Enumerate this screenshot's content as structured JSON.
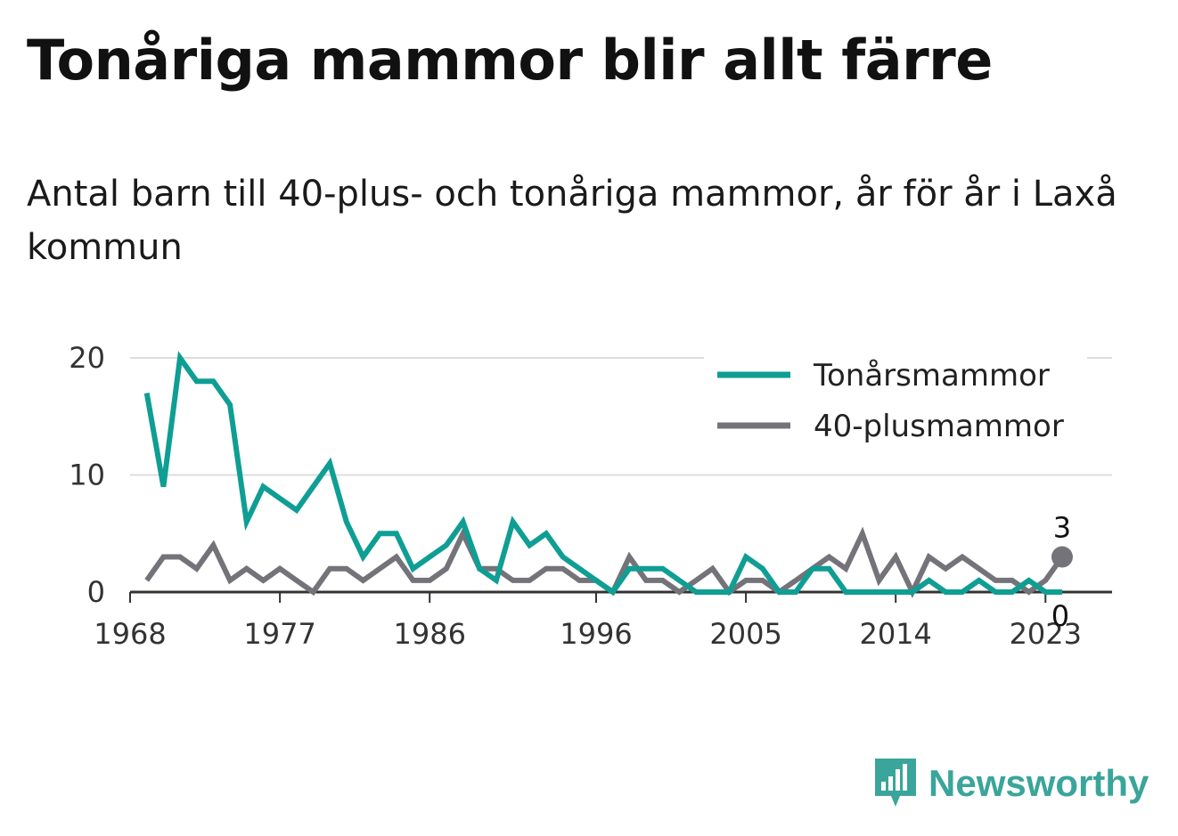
{
  "title": "Tonåriga mammor blir allt färre",
  "subtitle": "Antal barn till 40-plus- och tonåriga mammor, år för år i Laxå kommun",
  "brand": {
    "name": "Newsworthy",
    "icon": "newsworthy-logo-icon",
    "color": "#3aa59a"
  },
  "chart_data": {
    "type": "line",
    "x": [
      1969,
      1970,
      1971,
      1972,
      1973,
      1974,
      1975,
      1976,
      1977,
      1978,
      1979,
      1980,
      1981,
      1982,
      1983,
      1984,
      1985,
      1986,
      1987,
      1988,
      1989,
      1990,
      1991,
      1992,
      1993,
      1994,
      1995,
      1996,
      1997,
      1998,
      1999,
      2000,
      2001,
      2002,
      2003,
      2004,
      2005,
      2006,
      2007,
      2008,
      2009,
      2010,
      2011,
      2012,
      2013,
      2014,
      2015,
      2016,
      2017,
      2018,
      2019,
      2020,
      2021,
      2022,
      2023,
      2024
    ],
    "series": [
      {
        "name": "Tonårsmammor",
        "color": "#0f9e94",
        "values": [
          17,
          9,
          20,
          18,
          18,
          16,
          6,
          9,
          8,
          7,
          9,
          11,
          6,
          3,
          5,
          5,
          2,
          3,
          4,
          6,
          2,
          1,
          6,
          4,
          5,
          3,
          2,
          1,
          0,
          2,
          2,
          2,
          1,
          0,
          0,
          0,
          3,
          2,
          0,
          0,
          2,
          2,
          0,
          0,
          0,
          0,
          0,
          1,
          0,
          0,
          1,
          0,
          0,
          1,
          0,
          0
        ]
      },
      {
        "name": "40-plusmammor",
        "color": "#74737a",
        "values": [
          1,
          3,
          3,
          2,
          4,
          1,
          2,
          1,
          2,
          1,
          0,
          2,
          2,
          1,
          2,
          3,
          1,
          1,
          2,
          5,
          2,
          2,
          1,
          1,
          2,
          2,
          1,
          1,
          0,
          3,
          1,
          1,
          0,
          1,
          2,
          0,
          1,
          1,
          0,
          1,
          2,
          3,
          2,
          5,
          1,
          3,
          0,
          3,
          2,
          3,
          2,
          1,
          1,
          0,
          1,
          3
        ]
      }
    ],
    "end_labels": [
      "3",
      "0"
    ],
    "x_ticks": [
      "1968",
      "1977",
      "1986",
      "1996",
      "2005",
      "2014",
      "2023"
    ],
    "y_ticks": [
      "0",
      "10",
      "20"
    ],
    "xlim": [
      1968,
      2027
    ],
    "ylim": [
      0,
      20
    ],
    "grid": "horizontal",
    "legend": "top-right",
    "gridline_color": "#dddddd",
    "axis_color": "#333333"
  }
}
